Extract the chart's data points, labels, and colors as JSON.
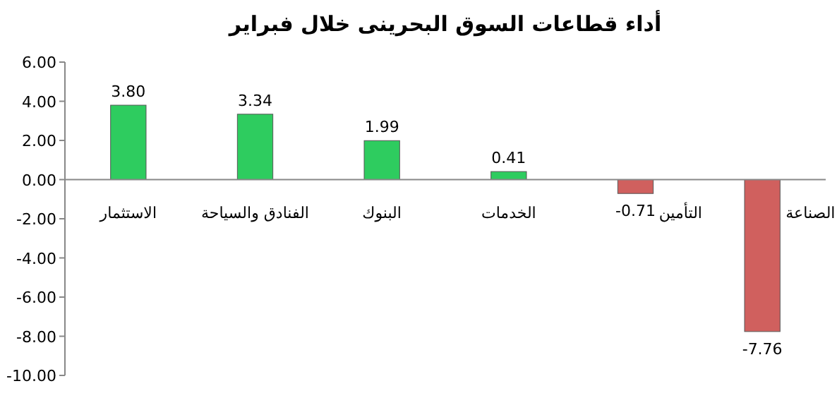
{
  "chart_data": {
    "type": "bar",
    "title": "أداء قطاعات السوق البحرينى خلال فبراير",
    "categories": [
      "الاستثمار",
      "الفنادق والسياحة",
      "البنوك",
      "الخدمات",
      "التأمين",
      "الصناعة"
    ],
    "values": [
      3.8,
      3.34,
      1.99,
      0.41,
      -0.71,
      -7.76
    ],
    "colors": [
      "#2ecc5f",
      "#2ecc5f",
      "#2ecc5f",
      "#2ecc5f",
      "#d0605e",
      "#d0605e"
    ],
    "value_labels": [
      "3.80",
      "3.34",
      "1.99",
      "0.41",
      "-0.71",
      "-7.76"
    ],
    "ylim": [
      -10,
      6
    ],
    "yticks": [
      {
        "value": -10,
        "label": "-10.00"
      },
      {
        "value": -8,
        "label": "-8.00"
      },
      {
        "value": -6,
        "label": "-6.00"
      },
      {
        "value": -4,
        "label": "-4.00"
      },
      {
        "value": -2,
        "label": "-2.00"
      },
      {
        "value": 0,
        "label": "0.00"
      },
      {
        "value": 2,
        "label": "2.00"
      },
      {
        "value": 4,
        "label": "4.00"
      },
      {
        "value": 6,
        "label": "6.00"
      }
    ],
    "grid": false
  }
}
